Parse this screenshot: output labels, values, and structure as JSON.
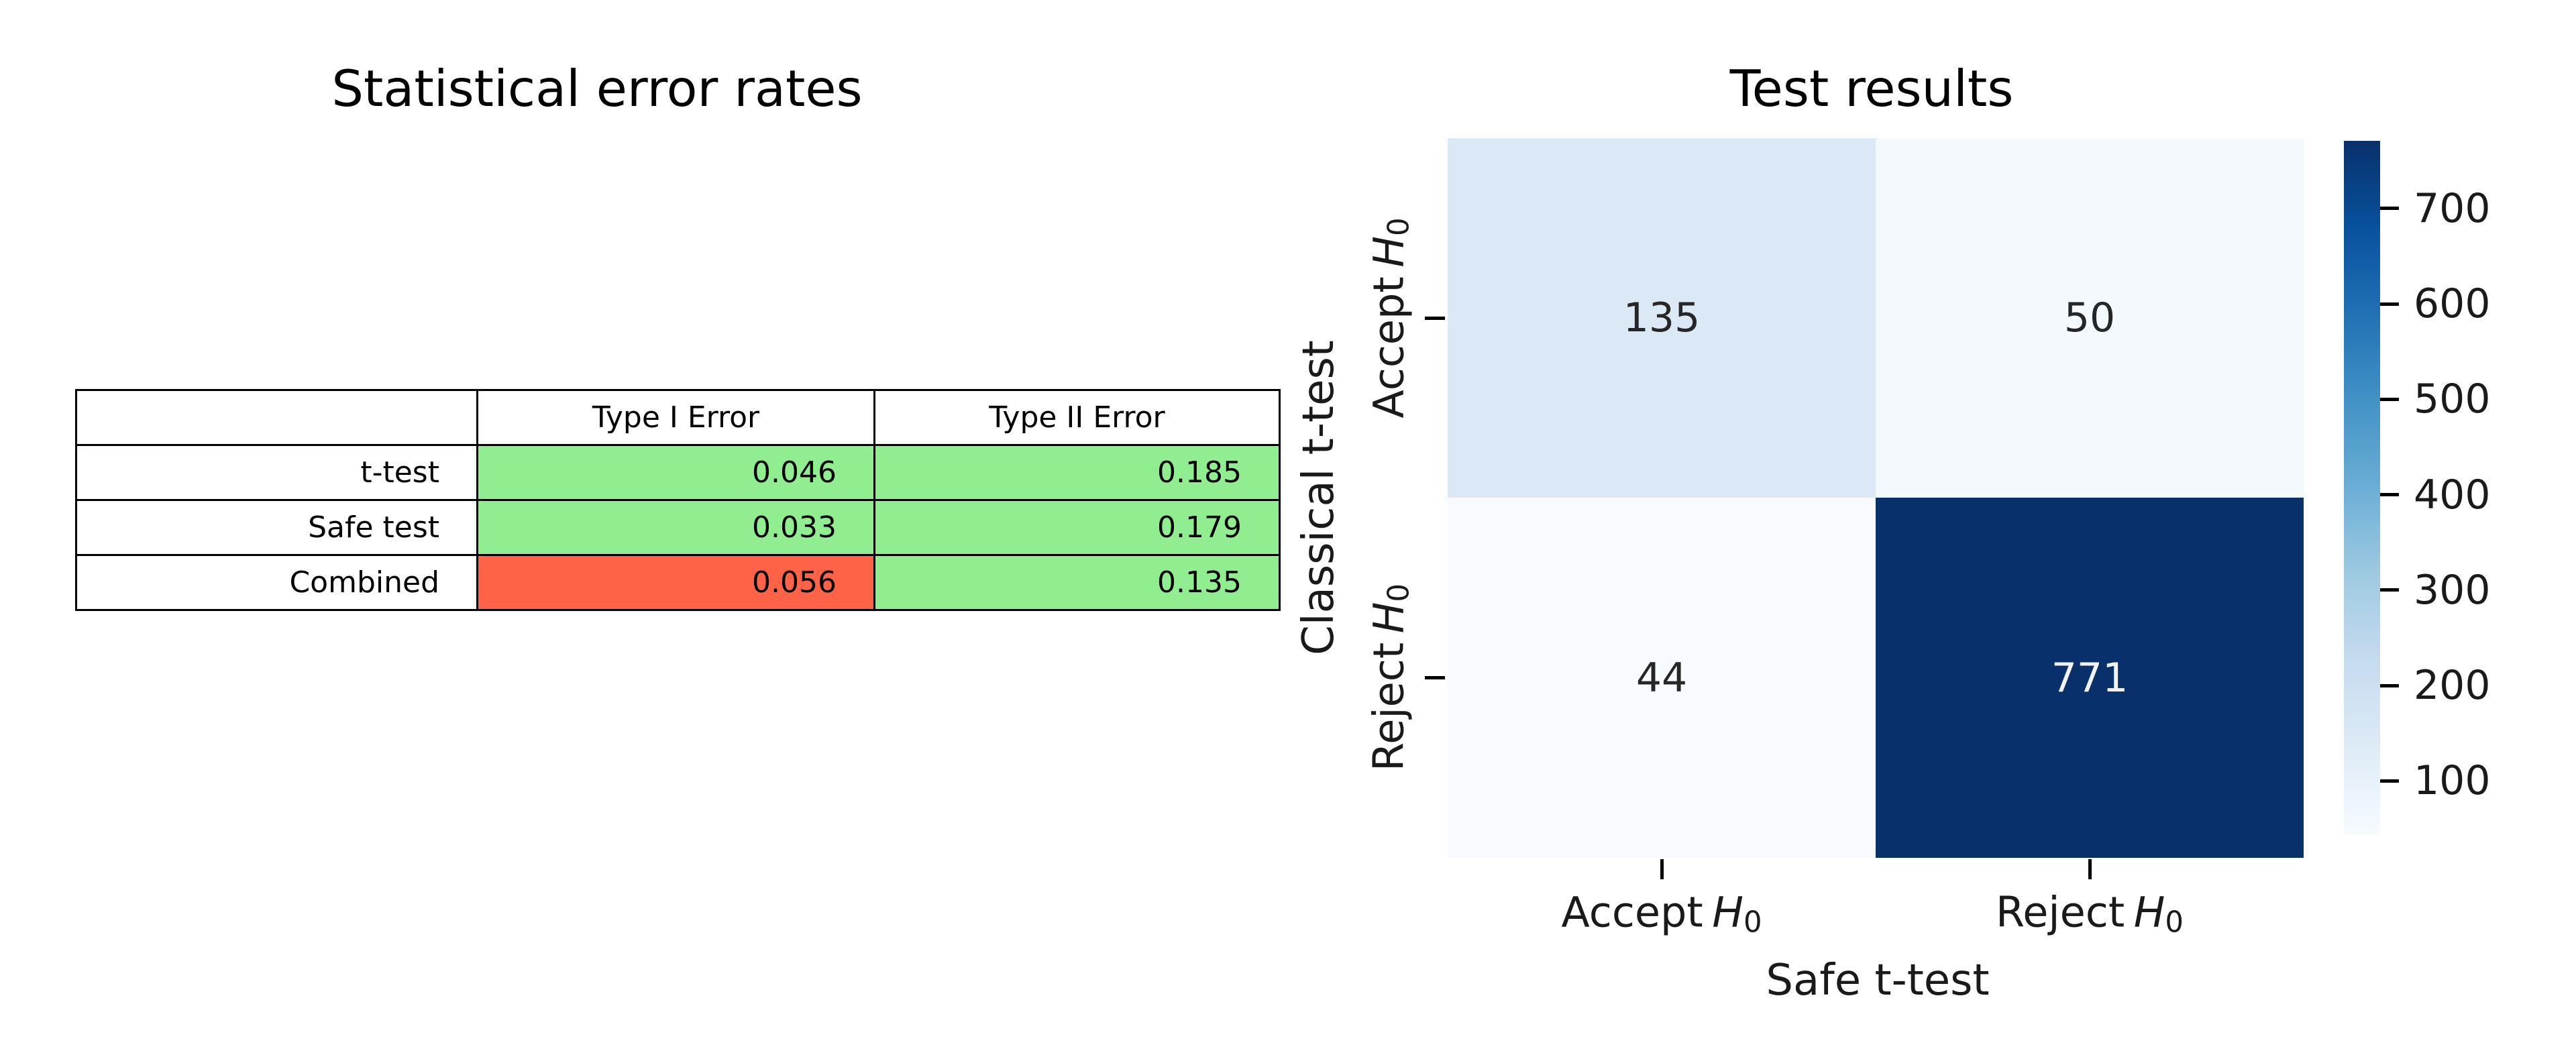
{
  "left_chart": {
    "title": "Statistical error rates",
    "columns": [
      "",
      "Type I Error",
      "Type II Error"
    ],
    "rows": [
      {
        "label": "t-test",
        "cells": [
          {
            "value": "0.046",
            "bg": "#90ee90"
          },
          {
            "value": "0.185",
            "bg": "#90ee90"
          }
        ]
      },
      {
        "label": "Safe test",
        "cells": [
          {
            "value": "0.033",
            "bg": "#90ee90"
          },
          {
            "value": "0.179",
            "bg": "#90ee90"
          }
        ]
      },
      {
        "label": "Combined",
        "cells": [
          {
            "value": "0.056",
            "bg": "#ff6347"
          },
          {
            "value": "0.135",
            "bg": "#90ee90"
          }
        ]
      }
    ],
    "highlight_colors": {
      "green": "#90ee90",
      "red": "#ff6347"
    }
  },
  "right_chart": {
    "title": "Test results",
    "cells": [
      {
        "value": "135",
        "bg": "#dbe8f5",
        "fg": "#262626"
      },
      {
        "value": "50",
        "bg": "#f4f9fd",
        "fg": "#262626"
      },
      {
        "value": "44",
        "bg": "#f7fbff",
        "fg": "#262626"
      },
      {
        "value": "771",
        "bg": "#08306b",
        "fg": "#f2f2f2"
      }
    ],
    "x_axis": {
      "title": "Safe t-test",
      "ticks": [
        {
          "prefix": "Accept",
          "symbol": "H",
          "sub": "0"
        },
        {
          "prefix": "Reject",
          "symbol": "H",
          "sub": "0"
        }
      ]
    },
    "y_axis": {
      "title": "Classical t-test",
      "ticks": [
        {
          "prefix": "Accept",
          "symbol": "H",
          "sub": "0"
        },
        {
          "prefix": "Reject",
          "symbol": "H",
          "sub": "0"
        }
      ]
    },
    "colorbar": {
      "min": 44,
      "max": 771,
      "ticks": [
        100,
        200,
        300,
        400,
        500,
        600,
        700
      ],
      "gradient": [
        "#f7fbff",
        "#deebf7",
        "#c6dbef",
        "#9ecae1",
        "#6baed6",
        "#4292c6",
        "#2171b5",
        "#08519c",
        "#08306b"
      ]
    }
  },
  "chart_data": [
    {
      "type": "table",
      "title": "Statistical error rates",
      "columns": [
        "",
        "Type I Error",
        "Type II Error"
      ],
      "rows": [
        [
          "t-test",
          0.046,
          0.185
        ],
        [
          "Safe test",
          0.033,
          0.179
        ],
        [
          "Combined",
          0.056,
          0.135
        ]
      ],
      "cell_highlights": [
        [
          "none",
          "green",
          "green"
        ],
        [
          "none",
          "green",
          "green"
        ],
        [
          "none",
          "red",
          "green"
        ]
      ]
    },
    {
      "type": "heatmap",
      "title": "Test results",
      "xlabel": "Safe t-test",
      "ylabel": "Classical t-test",
      "x_categories": [
        "Accept H₀",
        "Reject H₀"
      ],
      "y_categories": [
        "Accept H₀",
        "Reject H₀"
      ],
      "values": [
        [
          135,
          50
        ],
        [
          44,
          771
        ]
      ],
      "colormap": "Blues",
      "colorbar_range": [
        44,
        771
      ],
      "colorbar_ticks": [
        100,
        200,
        300,
        400,
        500,
        600,
        700
      ],
      "legend_position": "right"
    }
  ]
}
